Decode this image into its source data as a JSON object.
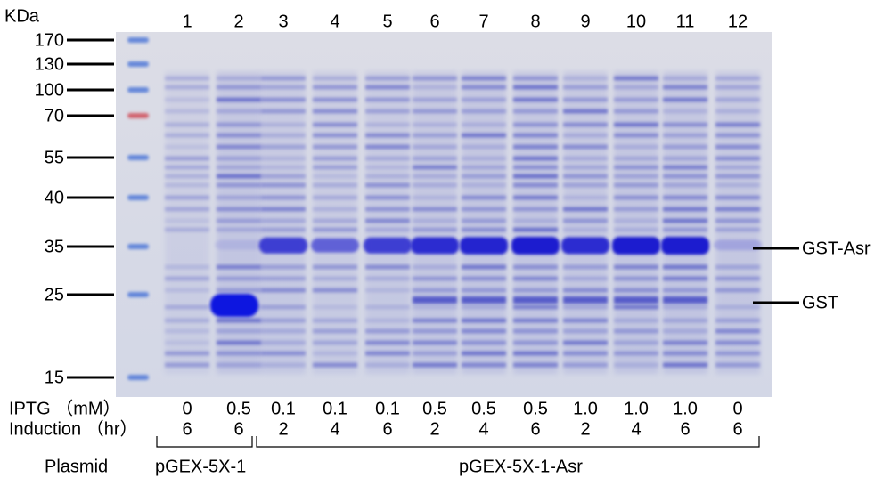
{
  "unit_label": "KDa",
  "markers": [
    "170",
    "130",
    "100",
    "70",
    "55",
    "40",
    "35",
    "25",
    "15"
  ],
  "lanes": [
    "1",
    "2",
    "3",
    "4",
    "5",
    "6",
    "7",
    "8",
    "9",
    "10",
    "11",
    "12"
  ],
  "band_labels": [
    "GST-Asr",
    "GST"
  ],
  "conditions": [
    {
      "label": "IPTG （mM）",
      "values": [
        "0",
        "0.5",
        "0.1",
        "0.1",
        "0.1",
        "0.5",
        "0.5",
        "0.5",
        "1.0",
        "1.0",
        "1.0",
        "0"
      ]
    },
    {
      "label": "Induction （hr）",
      "values": [
        "6",
        "6",
        "2",
        "4",
        "6",
        "2",
        "4",
        "6",
        "2",
        "4",
        "6",
        "6"
      ]
    }
  ],
  "plasmid": {
    "label": "Plasmid",
    "groups": [
      "pGEX-5X-1",
      "pGEX-5X-1-Asr"
    ]
  }
}
